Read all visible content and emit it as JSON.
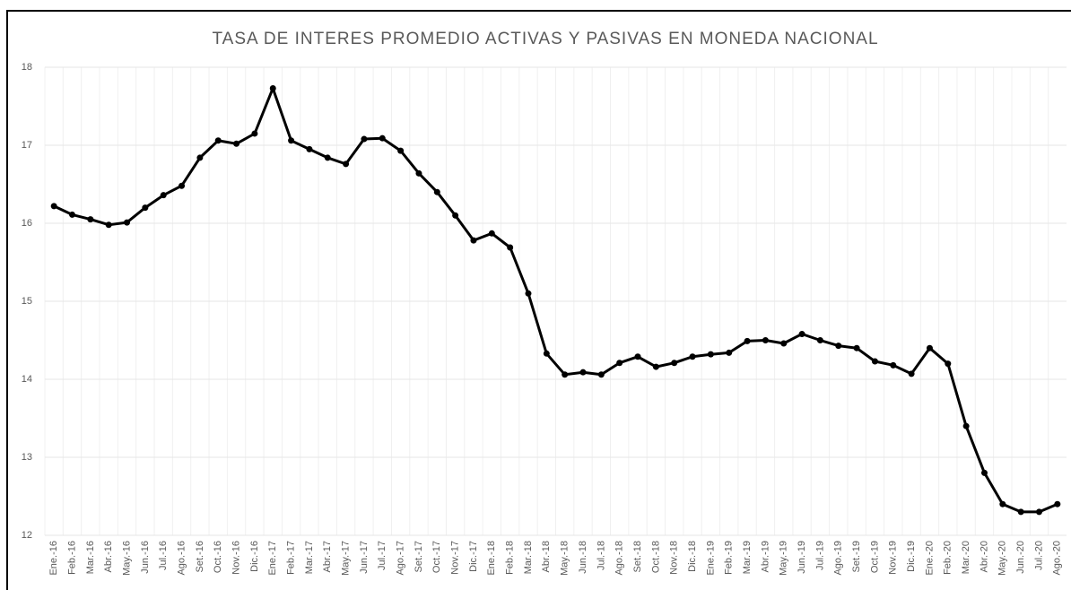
{
  "chart_data": {
    "type": "line",
    "title": "TASA DE INTERES PROMEDIO ACTIVAS Y PASIVAS EN MONEDA NACIONAL",
    "categories": [
      "Ene.-16",
      "Feb.-16",
      "Mar.-16",
      "Abr.-16",
      "May.-16",
      "Jun.-16",
      "Jul.-16",
      "Ago.-16",
      "Set.-16",
      "Oct.-16",
      "Nov.-16",
      "Dic.-16",
      "Ene.-17",
      "Feb.-17",
      "Mar.-17",
      "Abr.-17",
      "May.-17",
      "Jun.-17",
      "Jul.-17",
      "Ago.-17",
      "Set.-17",
      "Oct.-17",
      "Nov.-17",
      "Dic.-17",
      "Ene.-18",
      "Feb.-18",
      "Mar.-18",
      "Abr.-18",
      "May.-18",
      "Jun.-18",
      "Jul.-18",
      "Ago.-18",
      "Set.-18",
      "Oct.-18",
      "Nov.-18",
      "Dic.-18",
      "Ene.-19",
      "Feb.-19",
      "Mar.-19",
      "Abr.-19",
      "May.-19",
      "Jun.-19",
      "Jul.-19",
      "Ago.-19",
      "Set.-19",
      "Oct.-19",
      "Nov.-19",
      "Dic.-19",
      "Ene.-20",
      "Feb.-20",
      "Mar.-20",
      "Abr.-20",
      "May.-20",
      "Jun.-20",
      "Jul.-20",
      "Ago.-20"
    ],
    "values": [
      16.22,
      16.11,
      16.05,
      15.98,
      16.01,
      16.2,
      16.36,
      16.48,
      16.84,
      17.06,
      17.02,
      17.15,
      17.73,
      17.06,
      16.95,
      16.84,
      16.76,
      17.08,
      17.09,
      16.93,
      16.64,
      16.4,
      16.1,
      15.78,
      15.87,
      15.69,
      15.1,
      14.33,
      14.06,
      14.09,
      14.06,
      14.21,
      14.29,
      14.16,
      14.21,
      14.29,
      14.32,
      14.34,
      14.49,
      14.5,
      14.46,
      14.58,
      14.5,
      14.43,
      14.4,
      14.23,
      14.18,
      14.07,
      14.4,
      14.2,
      13.4,
      12.8,
      12.4,
      12.3,
      12.3,
      12.4
    ],
    "color": "#000000",
    "ylim": [
      12,
      18
    ],
    "yticks": [
      12,
      13,
      14,
      15,
      16,
      17,
      18
    ],
    "grid": true
  }
}
